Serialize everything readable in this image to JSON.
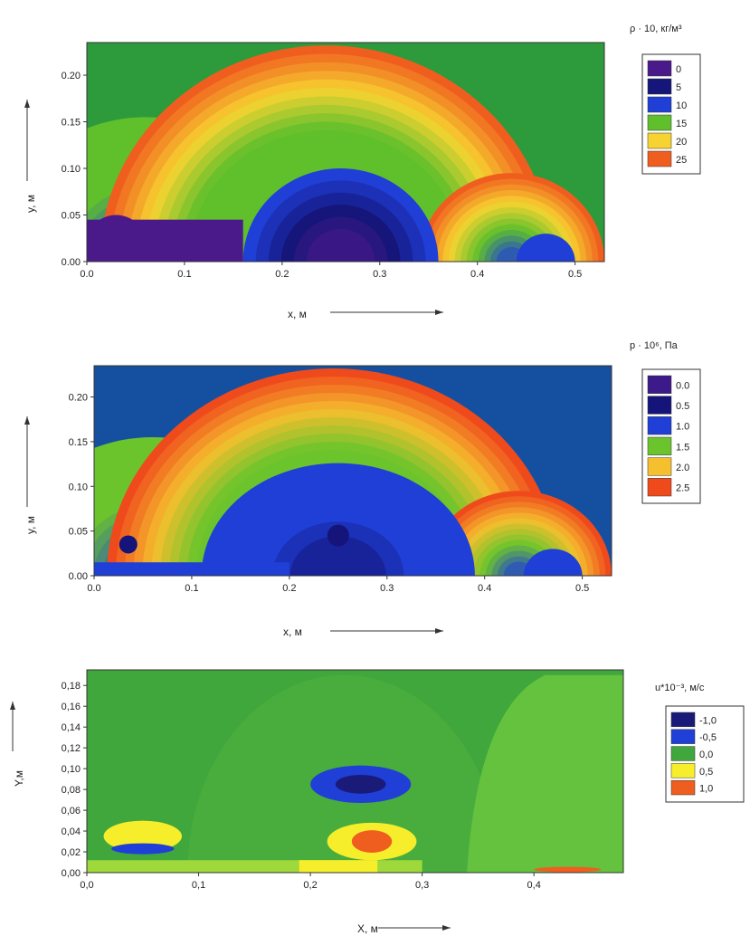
{
  "chart_data": [
    {
      "type": "heatmap",
      "legend_title": "ρ · 10, кг/м³",
      "xlabel": "x, м",
      "ylabel": "y, м",
      "xlim": [
        0.0,
        0.53
      ],
      "ylim": [
        0.0,
        0.235
      ],
      "x_ticks": [
        0.0,
        0.1,
        0.2,
        0.3,
        0.4,
        0.5
      ],
      "x_tick_labels": [
        "0.0",
        "0.1",
        "0.2",
        "0.3",
        "0.4",
        "0.5"
      ],
      "y_ticks": [
        0.0,
        0.05,
        0.1,
        0.15,
        0.2
      ],
      "y_tick_labels": [
        "0.00",
        "0.05",
        "0.10",
        "0.15",
        "0.20"
      ],
      "levels": [
        {
          "value": 0,
          "label": "0",
          "color": "#4b1a8a"
        },
        {
          "value": 5,
          "label": "5",
          "color": "#15157a"
        },
        {
          "value": 10,
          "label": "10",
          "color": "#1f3fd6"
        },
        {
          "value": 15,
          "label": "15",
          "color": "#5fc02c"
        },
        {
          "value": 20,
          "label": "20",
          "color": "#f7d331"
        },
        {
          "value": 25,
          "label": "25",
          "color": "#ef5e1f"
        }
      ],
      "background_color": "#2d9a3c",
      "features": {
        "shock_main": {
          "center_x": 0.245,
          "radius": 0.232,
          "low_center_x": 0.26,
          "low_radius": 0.1
        },
        "shock_right": {
          "center_x": 0.435,
          "radius": 0.095
        },
        "shock_left": {
          "center_x": 0.06,
          "radius": 0.155
        },
        "low_strip": {
          "x0": 0.0,
          "x1": 0.16,
          "y1": 0.045
        }
      }
    },
    {
      "type": "heatmap",
      "legend_title": "p · 10⁶, Па",
      "xlabel": "x, м",
      "ylabel": "y, м",
      "xlim": [
        0.0,
        0.53
      ],
      "ylim": [
        0.0,
        0.235
      ],
      "x_ticks": [
        0.0,
        0.1,
        0.2,
        0.3,
        0.4,
        0.5
      ],
      "x_tick_labels": [
        "0.0",
        "0.1",
        "0.2",
        "0.3",
        "0.4",
        "0.5"
      ],
      "y_ticks": [
        0.0,
        0.05,
        0.1,
        0.15,
        0.2
      ],
      "y_tick_labels": [
        "0.00",
        "0.05",
        "0.10",
        "0.15",
        "0.20"
      ],
      "levels": [
        {
          "value": 0.0,
          "label": "0.0",
          "color": "#3d1a8a"
        },
        {
          "value": 0.5,
          "label": "0.5",
          "color": "#14147a"
        },
        {
          "value": 1.0,
          "label": "1.0",
          "color": "#1f3fd6"
        },
        {
          "value": 1.5,
          "label": "1.5",
          "color": "#6cc42c"
        },
        {
          "value": 2.0,
          "label": "2.0",
          "color": "#f5bf2e"
        },
        {
          "value": 2.5,
          "label": "2.5",
          "color": "#ef4a1c"
        }
      ],
      "background_color": "#1550a0",
      "features": {
        "shock_main": {
          "center_x": 0.245,
          "radius": 0.232,
          "low_center_x": 0.25,
          "low_radius": 0.14
        },
        "shock_right": {
          "center_x": 0.435,
          "radius": 0.095
        },
        "shock_left": {
          "center_x": 0.06,
          "radius": 0.155
        },
        "low_strip": {
          "x0": 0.0,
          "x1": 0.2,
          "y1": 0.015
        }
      }
    },
    {
      "type": "heatmap",
      "legend_title": "u*10⁻³, м/с",
      "xlabel": "X, м",
      "ylabel": "Y,м",
      "xlim": [
        0.0,
        0.48
      ],
      "ylim": [
        0.0,
        0.195
      ],
      "x_ticks": [
        0.0,
        0.1,
        0.2,
        0.3,
        0.4
      ],
      "x_tick_labels": [
        "0,0",
        "0,1",
        "0,2",
        "0,3",
        "0,4"
      ],
      "y_ticks": [
        0.0,
        0.02,
        0.04,
        0.06,
        0.08,
        0.1,
        0.12,
        0.14,
        0.16,
        0.18
      ],
      "y_tick_labels": [
        "0,00",
        "0,02",
        "0,04",
        "0,06",
        "0,08",
        "0,10",
        "0,12",
        "0,14",
        "0,16",
        "0,18"
      ],
      "levels": [
        {
          "value": -1.0,
          "label": "-1,0",
          "color": "#1a1a78"
        },
        {
          "value": -0.5,
          "label": "-0,5",
          "color": "#1f3fd6"
        },
        {
          "value": 0.0,
          "label": "0,0",
          "color": "#3fa73c"
        },
        {
          "value": 0.5,
          "label": "0,5",
          "color": "#f6ee2a"
        },
        {
          "value": 1.0,
          "label": "1,0",
          "color": "#ef5e1f"
        }
      ],
      "background_color": "#3fa73c",
      "features": {
        "blue_blob": {
          "x": 0.245,
          "y": 0.085,
          "rx": 0.045,
          "ry": 0.018
        },
        "hot_blob": {
          "x": 0.255,
          "y": 0.03,
          "rx": 0.04,
          "ry": 0.018
        },
        "left_blob": {
          "x": 0.05,
          "y": 0.035,
          "rx": 0.035,
          "ry": 0.015
        },
        "bottom_strip": {
          "x0": 0.0,
          "x1": 0.3,
          "y1": 0.012
        }
      }
    }
  ]
}
